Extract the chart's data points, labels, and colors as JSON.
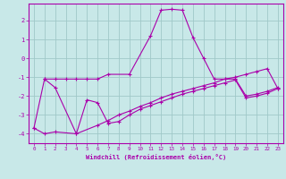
{
  "background_color": "#c8e8e8",
  "grid_color": "#a0c8c8",
  "line_color": "#aa00aa",
  "xlabel": "Windchill (Refroidissement éolien,°C)",
  "xlim": [
    -0.5,
    23.5
  ],
  "ylim": [
    -4.5,
    2.9
  ],
  "yticks": [
    -4,
    -3,
    -2,
    -1,
    0,
    1,
    2
  ],
  "xticks": [
    0,
    1,
    2,
    3,
    4,
    5,
    6,
    7,
    8,
    9,
    10,
    11,
    12,
    13,
    14,
    15,
    16,
    17,
    18,
    19,
    20,
    21,
    22,
    23
  ],
  "line1_x": [
    0,
    1,
    2,
    3,
    4,
    5,
    6,
    7,
    9,
    11,
    12,
    13,
    14,
    15,
    16,
    17,
    18,
    19,
    20,
    21,
    22,
    23
  ],
  "line1_y": [
    -3.7,
    -1.1,
    -1.1,
    -1.1,
    -1.1,
    -1.1,
    -1.1,
    -0.85,
    -0.85,
    1.2,
    2.55,
    2.6,
    2.55,
    1.1,
    0.0,
    -1.1,
    -1.1,
    -1.1,
    -2.0,
    -1.9,
    -1.75,
    -1.55
  ],
  "line2_x": [
    0,
    1,
    2,
    4,
    6,
    7,
    8,
    9,
    10,
    11,
    12,
    13,
    14,
    15,
    16,
    17,
    18,
    19,
    20,
    21,
    22,
    23
  ],
  "line2_y": [
    -3.7,
    -4.0,
    -3.9,
    -4.0,
    -3.55,
    -3.3,
    -3.0,
    -2.8,
    -2.55,
    -2.35,
    -2.1,
    -1.9,
    -1.75,
    -1.6,
    -1.45,
    -1.3,
    -1.1,
    -1.0,
    -0.85,
    -0.7,
    -0.55,
    -1.6
  ],
  "line3_x": [
    1,
    2,
    4,
    5,
    6,
    7,
    8,
    9,
    10,
    11,
    12,
    13,
    14,
    15,
    16,
    17,
    18,
    19,
    20,
    21,
    22,
    23
  ],
  "line3_y": [
    -1.1,
    -1.55,
    -4.0,
    -2.2,
    -2.35,
    -3.45,
    -3.35,
    -3.0,
    -2.7,
    -2.5,
    -2.3,
    -2.1,
    -1.9,
    -1.75,
    -1.6,
    -1.45,
    -1.3,
    -1.15,
    -2.1,
    -2.0,
    -1.85,
    -1.6
  ]
}
